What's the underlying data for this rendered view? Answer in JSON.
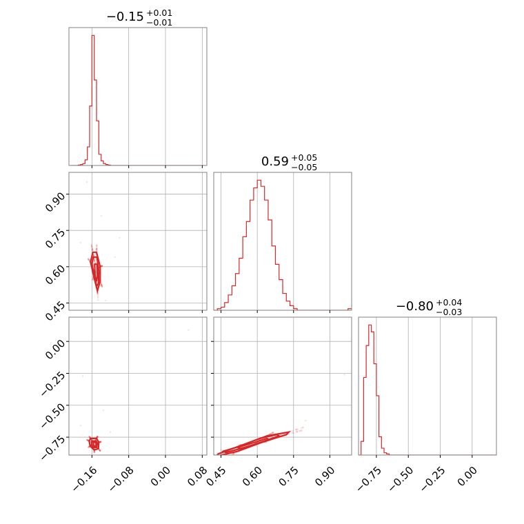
{
  "colors": {
    "series": "#d62728",
    "frame": "#808080",
    "grid": "#b0b0b0"
  },
  "chart_data": {
    "type": "corner",
    "grid": true,
    "parameters": [
      {
        "id": "p0",
        "median": -0.15,
        "err_plus": 0.01,
        "err_minus": 0.01,
        "title": {
          "main": "−0.15",
          "sup": "+0.01",
          "sub": "−0.01"
        },
        "ticks": [
          "−0.16",
          "−0.08",
          "0.00",
          "0.08"
        ],
        "tick_values": [
          -0.16,
          -0.08,
          0.0,
          0.08
        ],
        "range": [
          -0.21,
          0.09
        ]
      },
      {
        "id": "p1",
        "median": 0.59,
        "err_plus": 0.05,
        "err_minus": 0.05,
        "title": {
          "main": "0.59",
          "sup": "+0.05",
          "sub": "−0.05"
        },
        "ticks": [
          "0.45",
          "0.60",
          "0.75",
          "0.90"
        ],
        "tick_values": [
          0.45,
          0.6,
          0.75,
          0.9
        ],
        "range": [
          0.42,
          0.99
        ]
      },
      {
        "id": "p2",
        "median": -0.8,
        "err_plus": 0.04,
        "err_minus": 0.03,
        "title": {
          "main": "−0.80",
          "sup": "+0.04",
          "sub": "−0.03"
        },
        "ticks": [
          "−0.75",
          "−0.50",
          "−0.25",
          "0.00"
        ],
        "tick_values": [
          -0.75,
          -0.5,
          -0.25,
          0.0
        ],
        "range": [
          -0.89,
          0.19
        ]
      }
    ],
    "marginals": [
      {
        "param": 0,
        "bin_edges": [
          -0.205,
          -0.2,
          -0.195,
          -0.19,
          -0.185,
          -0.18,
          -0.175,
          -0.17,
          -0.165,
          -0.16,
          -0.155,
          -0.15,
          -0.145,
          -0.14,
          -0.135,
          -0.13,
          -0.125,
          -0.12,
          -0.115,
          -0.11,
          -0.105,
          -0.1,
          -0.095,
          -0.09,
          -0.085,
          -0.08,
          -0.075,
          -0.07,
          -0.065,
          -0.06,
          -0.055,
          -0.05,
          -0.045,
          -0.04,
          -0.035,
          -0.03,
          -0.025,
          -0.02,
          -0.015,
          -0.01,
          -0.005,
          0.0,
          0.005,
          0.01,
          0.015,
          0.02,
          0.025,
          0.03,
          0.035,
          0.04,
          0.045,
          0.05,
          0.055,
          0.06,
          0.065,
          0.07,
          0.075,
          0.08,
          0.085
        ],
        "counts": [
          0,
          0,
          0,
          0.5,
          1,
          2,
          6,
          20,
          64,
          140,
          92,
          48,
          12,
          5,
          2,
          1,
          0.5,
          0,
          0,
          0,
          0,
          0,
          0,
          0,
          0,
          0,
          0,
          0,
          0,
          0,
          0,
          0,
          0,
          0,
          0,
          0,
          0,
          0,
          0,
          0,
          0,
          0,
          0,
          0,
          0,
          0,
          0,
          0,
          0,
          0,
          0,
          0,
          0,
          0,
          0,
          0,
          0,
          0
        ]
      },
      {
        "param": 1,
        "bin_edges": [
          0.42,
          0.435,
          0.45,
          0.465,
          0.48,
          0.495,
          0.51,
          0.525,
          0.54,
          0.555,
          0.57,
          0.585,
          0.6,
          0.615,
          0.63,
          0.645,
          0.66,
          0.675,
          0.69,
          0.705,
          0.72,
          0.735,
          0.75,
          0.765,
          0.78,
          0.795,
          0.81,
          0.825,
          0.84,
          0.855,
          0.87,
          0.885,
          0.9,
          0.915,
          0.93,
          0.945,
          0.96,
          0.975,
          0.99
        ],
        "counts": [
          0,
          1,
          2,
          5,
          10,
          16,
          24,
          34,
          48,
          58,
          72,
          80,
          85,
          81,
          72,
          59,
          42,
          30,
          20,
          11,
          6,
          3,
          1,
          0,
          0,
          0,
          0,
          0,
          0,
          0,
          0,
          0,
          0,
          0,
          0,
          0,
          0,
          1
        ]
      },
      {
        "param": 2,
        "bin_edges": [
          -0.89,
          -0.87,
          -0.85,
          -0.83,
          -0.81,
          -0.79,
          -0.77,
          -0.75,
          -0.73,
          -0.71,
          -0.69,
          -0.67,
          -0.65,
          -0.63,
          -0.61,
          -0.59,
          -0.57,
          -0.55,
          -0.53,
          -0.51,
          -0.49,
          -0.47,
          -0.45,
          -0.43,
          -0.41,
          -0.39,
          -0.37,
          -0.35,
          -0.33,
          -0.31,
          -0.29,
          -0.27,
          -0.25,
          -0.23,
          -0.21,
          -0.19,
          -0.17,
          -0.15,
          -0.13,
          -0.11,
          -0.09,
          -0.07,
          -0.05,
          -0.03,
          -0.01,
          0.01,
          0.03,
          0.05,
          0.07,
          0.09,
          0.11,
          0.13,
          0.15,
          0.17,
          0.19
        ],
        "counts": [
          0,
          6,
          34,
          48,
          57,
          54,
          40,
          26,
          8,
          3,
          1,
          0.5,
          0,
          0,
          0,
          0,
          0,
          0,
          0,
          0,
          0,
          0,
          0,
          0,
          0,
          0,
          0,
          0,
          0,
          0,
          0,
          0,
          0,
          0,
          0,
          0,
          0,
          0,
          0,
          0,
          0,
          0,
          0,
          0,
          0,
          0,
          0,
          0,
          0,
          0,
          0,
          0,
          0,
          0,
          0
        ]
      }
    ],
    "joint": [
      {
        "x_param": 0,
        "y_param": 1,
        "contours": [
          [
            [
              -0.158,
              0.66
            ],
            [
              -0.15,
              0.66
            ],
            [
              -0.142,
              0.6
            ],
            [
              -0.142,
              0.54
            ],
            [
              -0.148,
              0.5
            ],
            [
              -0.156,
              0.56
            ],
            [
              -0.163,
              0.62
            ]
          ],
          [
            [
              -0.157,
              0.64
            ],
            [
              -0.149,
              0.64
            ],
            [
              -0.145,
              0.58
            ],
            [
              -0.146,
              0.53
            ],
            [
              -0.15,
              0.52
            ],
            [
              -0.155,
              0.57
            ],
            [
              -0.16,
              0.61
            ]
          ],
          [
            [
              -0.154,
              0.61
            ],
            [
              -0.149,
              0.61
            ],
            [
              -0.148,
              0.56
            ],
            [
              -0.15,
              0.54
            ],
            [
              -0.153,
              0.56
            ]
          ]
        ],
        "outliers": [
          [
            -0.171,
            0.95
          ],
          [
            -0.14,
            0.81
          ],
          [
            -0.1,
            0.72
          ],
          [
            -0.11,
            0.64
          ],
          [
            -0.185,
            0.7
          ],
          [
            -0.13,
            0.46
          ]
        ]
      },
      {
        "x_param": 0,
        "y_param": 2,
        "contours": [
          [
            [
              -0.163,
              -0.76
            ],
            [
              -0.15,
              -0.76
            ],
            [
              -0.145,
              -0.79
            ],
            [
              -0.146,
              -0.84
            ],
            [
              -0.155,
              -0.85
            ],
            [
              -0.164,
              -0.82
            ],
            [
              -0.166,
              -0.78
            ]
          ],
          [
            [
              -0.16,
              -0.78
            ],
            [
              -0.151,
              -0.78
            ],
            [
              -0.148,
              -0.8
            ],
            [
              -0.15,
              -0.83
            ],
            [
              -0.157,
              -0.83
            ],
            [
              -0.161,
              -0.81
            ]
          ],
          [
            [
              -0.157,
              -0.79
            ],
            [
              -0.151,
              -0.79
            ],
            [
              -0.151,
              -0.82
            ],
            [
              -0.156,
              -0.82
            ]
          ]
        ],
        "outliers": [
          [
            -0.18,
            -0.27
          ],
          [
            0.05,
            0.09
          ],
          [
            -0.135,
            -0.54
          ],
          [
            -0.12,
            -0.71
          ],
          [
            -0.185,
            -0.66
          ]
        ]
      },
      {
        "x_param": 1,
        "y_param": 2,
        "contours": [
          [
            [
              0.43,
              -0.9
            ],
            [
              0.52,
              -0.86
            ],
            [
              0.62,
              -0.79
            ],
            [
              0.72,
              -0.73
            ],
            [
              0.73,
              -0.71
            ],
            [
              0.64,
              -0.74
            ],
            [
              0.54,
              -0.81
            ],
            [
              0.44,
              -0.88
            ]
          ],
          [
            [
              0.47,
              -0.87
            ],
            [
              0.55,
              -0.83
            ],
            [
              0.63,
              -0.78
            ],
            [
              0.69,
              -0.74
            ],
            [
              0.68,
              -0.73
            ],
            [
              0.61,
              -0.76
            ],
            [
              0.53,
              -0.82
            ],
            [
              0.46,
              -0.86
            ]
          ],
          [
            [
              0.53,
              -0.84
            ],
            [
              0.6,
              -0.8
            ],
            [
              0.65,
              -0.77
            ],
            [
              0.64,
              -0.76
            ],
            [
              0.59,
              -0.79
            ],
            [
              0.52,
              -0.83
            ]
          ]
        ],
        "outliers": [
          [
            0.96,
            -0.26
          ],
          [
            0.8,
            -0.62
          ],
          [
            0.45,
            -0.85
          ]
        ]
      }
    ]
  }
}
